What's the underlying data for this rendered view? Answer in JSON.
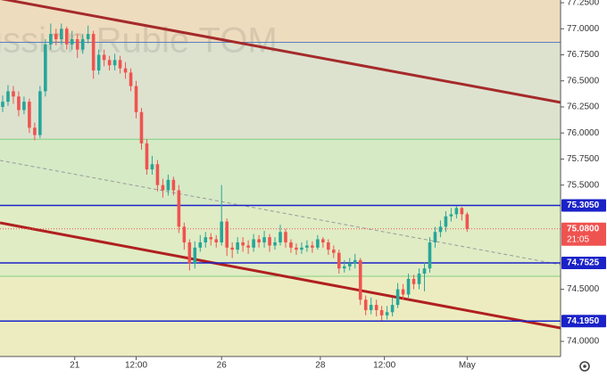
{
  "chart_data": {
    "type": "candlestick",
    "watermark": "Russian Ruble TOM",
    "up_color": "#26a69a",
    "down_color": "#ef5350",
    "xlim": [
      -0.5,
      104.5
    ],
    "ylim": [
      73.855,
      77.276
    ],
    "xticks": [
      {
        "value": 13.5,
        "label": "21"
      },
      {
        "value": 25,
        "label": "12:00"
      },
      {
        "value": 41,
        "label": "26"
      },
      {
        "value": 59.5,
        "label": "28"
      },
      {
        "value": 71.5,
        "label": "12:00"
      },
      {
        "value": 87,
        "label": "May"
      }
    ],
    "yticks": [
      {
        "value": 77.25,
        "label": "77.2500"
      },
      {
        "value": 77,
        "label": "77.0000"
      },
      {
        "value": 76.75,
        "label": "76.7500"
      },
      {
        "value": 76.5,
        "label": "76.5000"
      },
      {
        "value": 76.25,
        "label": "76.2500"
      },
      {
        "value": 76,
        "label": "76.0000"
      },
      {
        "value": 75.75,
        "label": "75.7500"
      },
      {
        "value": 75.5,
        "label": "75.5000"
      },
      {
        "value": 74.5,
        "label": "74.5000"
      },
      {
        "value": 74,
        "label": "74.0000"
      }
    ],
    "zones": [
      {
        "from": 76.87,
        "to": 77.276,
        "color": "#eedcbe"
      },
      {
        "from": 75.94,
        "to": 76.87,
        "color": "#dde2cf"
      },
      {
        "from": 75.305,
        "to": 75.94,
        "color": "#d6eac6"
      },
      {
        "from": 74.625,
        "to": 75.305,
        "color": "#e0ecc4"
      },
      {
        "from": 73.855,
        "to": 74.625,
        "color": "#edecc0"
      }
    ],
    "guide_lines": [
      {
        "value": 76.87,
        "color": "#5a7fc0"
      },
      {
        "value": 75.94,
        "color": "#7fcf7f"
      },
      {
        "value": 74.625,
        "color": "#7fcf7f"
      }
    ],
    "levels": [
      {
        "value": 75.305,
        "label": "75.3050",
        "color": "#1a22c8"
      },
      {
        "value": 74.7525,
        "label": "74.7525",
        "color": "#1a22c8"
      },
      {
        "value": 74.195,
        "label": "74.1950",
        "color": "#1a22c8"
      }
    ],
    "last_price": {
      "value": 75.08,
      "label": "75.0800",
      "countdown": "21:05",
      "color": "#ef5350"
    },
    "trendlines": [
      {
        "x": [
          -0.5,
          104.5
        ],
        "y": [
          77.29,
          76.293
        ],
        "color": "#a52a2a",
        "dashed": false
      },
      {
        "x": [
          -0.5,
          104.5
        ],
        "y": [
          75.138,
          74.128
        ],
        "color": "#b02020",
        "dashed": false
      },
      {
        "x": [
          -0.5,
          104.5
        ],
        "y": [
          75.737,
          74.736
        ],
        "color": "#9a9a9a",
        "dashed": true
      }
    ],
    "open": [
      76.25,
      76.3,
      76.4,
      76.35,
      76.22,
      76.3,
      76.05,
      75.98,
      76.4,
      76.85,
      76.95,
      76.9,
      77.0,
      76.85,
      76.9,
      76.8,
      76.9,
      76.95,
      76.6,
      76.75,
      76.7,
      76.65,
      76.7,
      76.62,
      76.58,
      76.45,
      76.2,
      75.9,
      75.65,
      75.7,
      75.5,
      75.45,
      75.55,
      75.45,
      75.1,
      74.95,
      74.75,
      74.9,
      74.95,
      75.0,
      74.98,
      74.95,
      75.15,
      74.9,
      74.88,
      74.95,
      74.92,
      74.9,
      74.98,
      74.95,
      75.0,
      74.92,
      74.95,
      75.05,
      74.95,
      74.9,
      74.88,
      74.9,
      74.92,
      74.9,
      74.98,
      74.95,
      74.88,
      74.85,
      74.7,
      74.72,
      74.75,
      74.78,
      74.4,
      74.3,
      74.35,
      74.3,
      74.25,
      74.28,
      74.35,
      74.5,
      74.45,
      74.6,
      74.55,
      74.65,
      74.7,
      74.95,
      75.05,
      75.1,
      75.2,
      75.22,
      75.28,
      75.22
    ],
    "high": [
      76.36,
      76.46,
      76.45,
      76.4,
      76.35,
      76.33,
      76.1,
      76.45,
      76.9,
      77.05,
      77.0,
      77.05,
      77.02,
      76.98,
      76.95,
      76.95,
      77.03,
      76.98,
      76.8,
      76.8,
      76.74,
      76.76,
      76.74,
      76.68,
      76.62,
      76.5,
      76.24,
      75.94,
      75.78,
      75.74,
      75.56,
      75.6,
      75.58,
      75.5,
      75.14,
      74.98,
      74.96,
      75.02,
      75.05,
      75.04,
      75.02,
      75.5,
      75.18,
      74.95,
      75.0,
      75.0,
      74.97,
      75.03,
      75.02,
      75.06,
      75.03,
      75.0,
      75.12,
      75.08,
      74.98,
      74.94,
      74.95,
      74.97,
      74.96,
      75.02,
      75.0,
      74.98,
      74.92,
      74.88,
      74.78,
      74.8,
      74.84,
      74.8,
      74.44,
      74.42,
      74.4,
      74.34,
      74.34,
      74.42,
      74.56,
      74.55,
      74.65,
      74.64,
      74.7,
      74.76,
      75.0,
      75.1,
      75.16,
      75.25,
      75.28,
      75.3,
      75.29,
      75.24
    ],
    "low": [
      76.2,
      76.26,
      76.28,
      76.16,
      76.18,
      76.0,
      75.93,
      75.95,
      76.35,
      76.8,
      76.84,
      76.85,
      76.8,
      76.8,
      76.72,
      76.76,
      76.86,
      76.52,
      76.56,
      76.64,
      76.6,
      76.6,
      76.57,
      76.52,
      76.4,
      76.14,
      75.84,
      75.6,
      75.6,
      75.44,
      75.38,
      75.4,
      75.4,
      75.04,
      74.88,
      74.68,
      74.7,
      74.86,
      74.9,
      74.92,
      74.9,
      74.92,
      74.82,
      74.8,
      74.84,
      74.86,
      74.84,
      74.86,
      74.9,
      74.9,
      74.86,
      74.88,
      74.92,
      74.9,
      74.85,
      74.83,
      74.84,
      74.86,
      74.85,
      74.88,
      74.9,
      74.83,
      74.8,
      74.65,
      74.66,
      74.68,
      74.7,
      74.35,
      74.25,
      74.26,
      74.24,
      74.2,
      74.21,
      74.24,
      74.32,
      74.4,
      74.42,
      74.5,
      74.5,
      74.48,
      74.66,
      74.9,
      75.0,
      75.05,
      75.15,
      75.18,
      75.16,
      75.05
    ],
    "close": [
      76.3,
      76.4,
      76.35,
      76.22,
      76.3,
      76.05,
      75.98,
      76.4,
      76.85,
      76.95,
      76.9,
      77.0,
      76.85,
      76.9,
      76.8,
      76.9,
      76.95,
      76.6,
      76.75,
      76.7,
      76.65,
      76.7,
      76.62,
      76.58,
      76.45,
      76.2,
      75.9,
      75.65,
      75.7,
      75.5,
      75.45,
      75.55,
      75.45,
      75.1,
      74.95,
      74.75,
      74.9,
      74.95,
      75.0,
      74.98,
      74.95,
      75.15,
      74.9,
      74.88,
      74.95,
      74.92,
      74.9,
      74.98,
      74.95,
      75.0,
      74.92,
      74.95,
      75.05,
      74.95,
      74.9,
      74.88,
      74.9,
      74.92,
      74.9,
      74.98,
      74.95,
      74.88,
      74.85,
      74.7,
      74.72,
      74.75,
      74.78,
      74.4,
      74.3,
      74.35,
      74.3,
      74.25,
      74.28,
      74.35,
      74.5,
      74.45,
      74.6,
      74.55,
      74.65,
      74.7,
      74.95,
      75.05,
      75.1,
      75.2,
      75.22,
      75.28,
      75.22,
      75.08
    ]
  }
}
